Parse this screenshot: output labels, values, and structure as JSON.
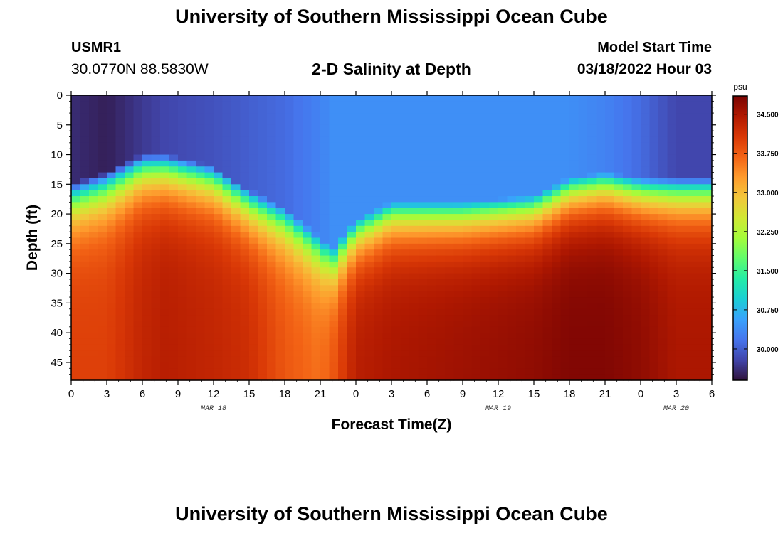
{
  "header": {
    "title": "University of Southern Mississippi Ocean Cube",
    "station_id": "USMR1",
    "coordinates": "30.0770N  88.5830W",
    "chart_title": "2-D Salinity at Depth",
    "model_start_label": "Model Start Time",
    "model_start_value": "03/18/2022 Hour 03",
    "bottom_title": "University of Southern Mississippi Ocean Cube"
  },
  "chart_data": {
    "type": "heatmap",
    "title": "2-D Salinity at Depth",
    "xlabel": "Forecast Time(Z)",
    "ylabel": "Depth (ft)",
    "x_tick_labels": [
      "0",
      "3",
      "6",
      "9",
      "12",
      "15",
      "18",
      "21",
      "0",
      "3",
      "6",
      "9",
      "12",
      "15",
      "18",
      "21",
      "0",
      "3",
      "6"
    ],
    "date_labels": [
      {
        "label": "MAR 18",
        "tick_index": 4
      },
      {
        "label": "MAR 19",
        "tick_index": 12
      },
      {
        "label": "MAR 20",
        "tick_index": 17
      }
    ],
    "y_tick_labels": [
      "0",
      "5",
      "10",
      "15",
      "20",
      "25",
      "30",
      "35",
      "40",
      "45"
    ],
    "ylim": [
      0,
      48
    ],
    "y_inverted": true,
    "colorbar": {
      "unit": "psu",
      "min": 29.4,
      "max": 34.85,
      "tick_labels": [
        "34.500",
        "33.750",
        "33.000",
        "32.250",
        "31.500",
        "30.750",
        "30.000"
      ],
      "tick_values": [
        34.5,
        33.75,
        33.0,
        32.25,
        31.5,
        30.75,
        30.0
      ],
      "colormap": [
        "#30123b",
        "#4145ab",
        "#4675ed",
        "#39a2fc",
        "#1bcfd4",
        "#24eca6",
        "#61fc6c",
        "#a4fc3b",
        "#d1e834",
        "#f3c63a",
        "#fe9b2d",
        "#f36315",
        "#d93806",
        "#b11901",
        "#7a0403"
      ]
    },
    "series": [
      {
        "x": 0,
        "mixed_layer_ft": 15,
        "surface_psu": 29.6,
        "bottom_psu": 34.0
      },
      {
        "x": 3,
        "mixed_layer_ft": 13,
        "surface_psu": 29.5,
        "bottom_psu": 34.0
      },
      {
        "x": 6,
        "mixed_layer_ft": 10,
        "surface_psu": 29.7,
        "bottom_psu": 34.3
      },
      {
        "x": 8,
        "mixed_layer_ft": 10,
        "surface_psu": 29.8,
        "bottom_psu": 34.4
      },
      {
        "x": 12,
        "mixed_layer_ft": 12,
        "surface_psu": 29.9,
        "bottom_psu": 34.3
      },
      {
        "x": 15,
        "mixed_layer_ft": 16,
        "surface_psu": 30.0,
        "bottom_psu": 34.2
      },
      {
        "x": 18,
        "mixed_layer_ft": 19,
        "surface_psu": 30.1,
        "bottom_psu": 33.8
      },
      {
        "x": 21,
        "mixed_layer_ft": 24,
        "surface_psu": 30.3,
        "bottom_psu": 33.6
      },
      {
        "x": 22,
        "mixed_layer_ft": 26,
        "surface_psu": 30.4,
        "bottom_psu": 33.8
      },
      {
        "x": 24,
        "mixed_layer_ft": 21,
        "surface_psu": 30.4,
        "bottom_psu": 34.4
      },
      {
        "x": 27,
        "mixed_layer_ft": 18,
        "surface_psu": 30.4,
        "bottom_psu": 34.5
      },
      {
        "x": 33,
        "mixed_layer_ft": 18,
        "surface_psu": 30.4,
        "bottom_psu": 34.6
      },
      {
        "x": 39,
        "mixed_layer_ft": 17,
        "surface_psu": 30.4,
        "bottom_psu": 34.7
      },
      {
        "x": 42,
        "mixed_layer_ft": 14,
        "surface_psu": 30.4,
        "bottom_psu": 34.8
      },
      {
        "x": 45,
        "mixed_layer_ft": 13,
        "surface_psu": 30.3,
        "bottom_psu": 34.8
      },
      {
        "x": 48,
        "mixed_layer_ft": 14,
        "surface_psu": 30.1,
        "bottom_psu": 34.7
      },
      {
        "x": 51,
        "mixed_layer_ft": 14,
        "surface_psu": 29.8,
        "bottom_psu": 34.5
      },
      {
        "x": 54,
        "mixed_layer_ft": 14,
        "surface_psu": 29.8,
        "bottom_psu": 34.5
      }
    ]
  }
}
